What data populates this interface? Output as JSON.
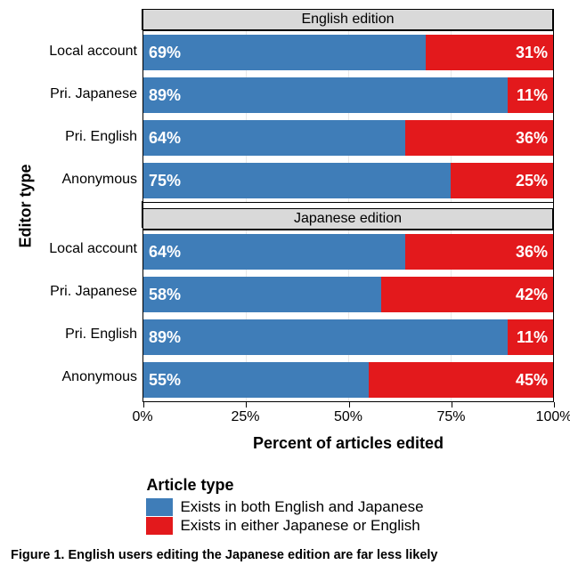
{
  "chart": {
    "y_axis_title": "Editor type",
    "x_axis_title": "Percent of articles edited",
    "xlim": [
      0,
      100
    ],
    "x_ticks": [
      0,
      25,
      50,
      75,
      100
    ],
    "x_tick_labels": [
      "0%",
      "25%",
      "50%",
      "75%",
      "100%"
    ],
    "colors": {
      "both": "#3f7db8",
      "either": "#e3191c",
      "panel_header_bg": "#d9d9d9",
      "grid": "#e8e8e8",
      "text_on_bar": "#ffffff"
    },
    "bar_label_fontsize": 18,
    "axis_label_fontsize": 16,
    "panels": [
      {
        "title": "English edition",
        "rows": [
          {
            "label": "Local account",
            "both": 69,
            "either": 31
          },
          {
            "label": "Pri. Japanese",
            "both": 89,
            "either": 11
          },
          {
            "label": "Pri. English",
            "both": 64,
            "either": 36
          },
          {
            "label": "Anonymous",
            "both": 75,
            "either": 25
          }
        ]
      },
      {
        "title": "Japanese edition",
        "rows": [
          {
            "label": "Local account",
            "both": 64,
            "either": 36
          },
          {
            "label": "Pri. Japanese",
            "both": 58,
            "either": 42
          },
          {
            "label": "Pri. English",
            "both": 89,
            "either": 11
          },
          {
            "label": "Anonymous",
            "both": 55,
            "either": 45
          }
        ]
      }
    ]
  },
  "legend": {
    "title": "Article type",
    "items": [
      {
        "label": "Exists in both English and Japanese",
        "color_key": "both"
      },
      {
        "label": "Exists in either Japanese or English",
        "color_key": "either"
      }
    ]
  },
  "caption": "Figure 1.  English users editing the Japanese edition are far less likely"
}
